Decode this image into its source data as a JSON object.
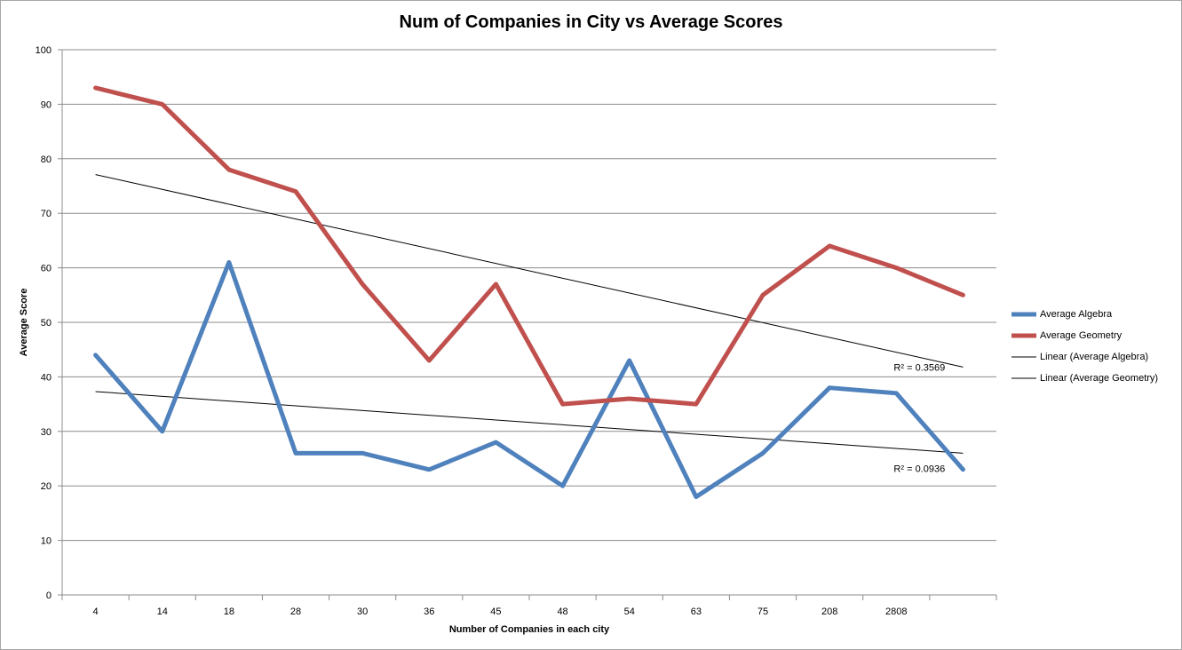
{
  "chart_data": {
    "type": "line",
    "title": "Num of Companies in City vs Average Scores",
    "xlabel": "Number of Companies in each city",
    "ylabel": "Average Score",
    "ylim": [
      0,
      100
    ],
    "yticks": [
      0,
      10,
      20,
      30,
      40,
      50,
      60,
      70,
      80,
      90,
      100
    ],
    "grid": true,
    "legend_position": "right",
    "categories": [
      "4",
      "14",
      "18",
      "28",
      "30",
      "36",
      "45",
      "48",
      "54",
      "63",
      "75",
      "208",
      "2808",
      ""
    ],
    "series": [
      {
        "name": "Average Algebra",
        "color": "#4f81bd",
        "values": [
          44,
          30,
          61,
          26,
          26,
          23,
          28,
          20,
          43,
          18,
          26,
          38,
          37,
          23
        ]
      },
      {
        "name": "Average Geometry",
        "color": "#c0504d",
        "values": [
          93,
          90,
          78,
          74,
          57,
          43,
          57,
          35,
          36,
          35,
          55,
          64,
          60,
          55
        ]
      }
    ],
    "trendlines": [
      {
        "name": "Linear (Average Algebra)",
        "color": "#000000",
        "start": 37.3,
        "end": 26.0,
        "r2_label": "R² = 0.0936"
      },
      {
        "name": "Linear (Average Geometry)",
        "color": "#000000",
        "start": 77.1,
        "end": 41.8,
        "r2_label": "R² = 0.3569"
      }
    ]
  }
}
